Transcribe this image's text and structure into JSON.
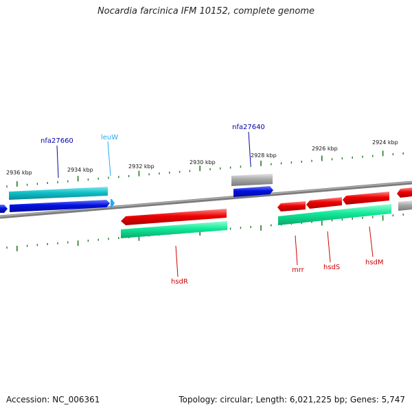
{
  "title": "Nocardia farcinica IFM 10152, complete genome",
  "footer": {
    "accession": "Accession: NC_006361",
    "summary": "Topology: circular; Length: 6,021,225 bp; Genes: 5,747"
  },
  "ticks": [
    "2936 kbp",
    "2934 kbp",
    "2932 kbp",
    "2930 kbp",
    "2928 kbp",
    "2926 kbp",
    "2924 kbp"
  ],
  "gene_labels": [
    "nfa27660",
    "leuW",
    "nfa27640",
    "hsdR",
    "mrr",
    "hsdS",
    "hsdM"
  ],
  "colors": {
    "backbone": "#808080",
    "tick": "#1f7a1f",
    "cds_blue": "#0010e0",
    "cds_cyan": "#10c0c8",
    "cds_red": "#ee0000",
    "cds_green": "#10e898",
    "cds_gray": "#a8a8a8",
    "trna": "#22aaff",
    "label_blue": "#0000aa",
    "label_cyan": "#22aaee",
    "label_red": "#cc0000"
  }
}
